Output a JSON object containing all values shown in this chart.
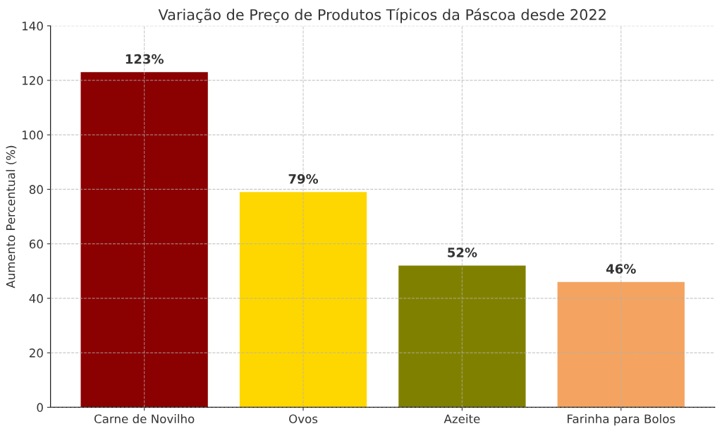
{
  "chart_data": {
    "type": "bar",
    "title": "Variação de Preço de Produtos Típicos da Páscoa desde 2022",
    "ylabel": "Aumento Percentual (%)",
    "categories": [
      "Carne de Novilho",
      "Ovos",
      "Azeite",
      "Farinha para Bolos"
    ],
    "values": [
      123,
      79,
      52,
      46
    ],
    "colors": [
      "#8b0000",
      "#ffd700",
      "#808000",
      "#f4a460"
    ],
    "value_labels": [
      "123%",
      "79%",
      "52%",
      "46%"
    ],
    "ylim": [
      0,
      140
    ],
    "yticks": [
      0,
      20,
      40,
      60,
      80,
      100,
      120,
      140
    ],
    "grid": true
  }
}
